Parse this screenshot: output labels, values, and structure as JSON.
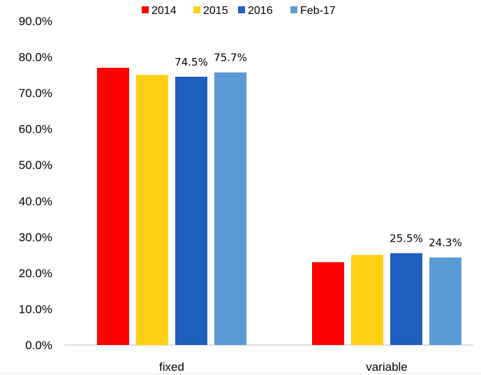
{
  "chart_data": {
    "type": "bar",
    "categories": [
      "fixed",
      "variable"
    ],
    "series": [
      {
        "name": "2014",
        "color": "#ff0000",
        "values": [
          77.0,
          23.0
        ]
      },
      {
        "name": "2015",
        "color": "#ffd014",
        "values": [
          75.0,
          25.0
        ]
      },
      {
        "name": "2016",
        "color": "#1f5fbd",
        "values": [
          74.5,
          25.5
        ]
      },
      {
        "name": "Feb-17",
        "color": "#5b9bd5",
        "values": [
          75.7,
          24.3
        ]
      }
    ],
    "data_labels": {
      "2016": [
        "74.5%",
        "25.5%"
      ],
      "Feb-17": [
        "75.7%",
        "24.3%"
      ]
    },
    "yticks": [
      "0.0%",
      "10.0%",
      "20.0%",
      "30.0%",
      "40.0%",
      "50.0%",
      "60.0%",
      "70.0%",
      "80.0%",
      "90.0%"
    ],
    "ylim": [
      0,
      90
    ],
    "legend": "top-center",
    "grid": false,
    "colors": {
      "axis": "#bfbfbf",
      "bottom_dotted_border": "#bfbfbf"
    }
  }
}
